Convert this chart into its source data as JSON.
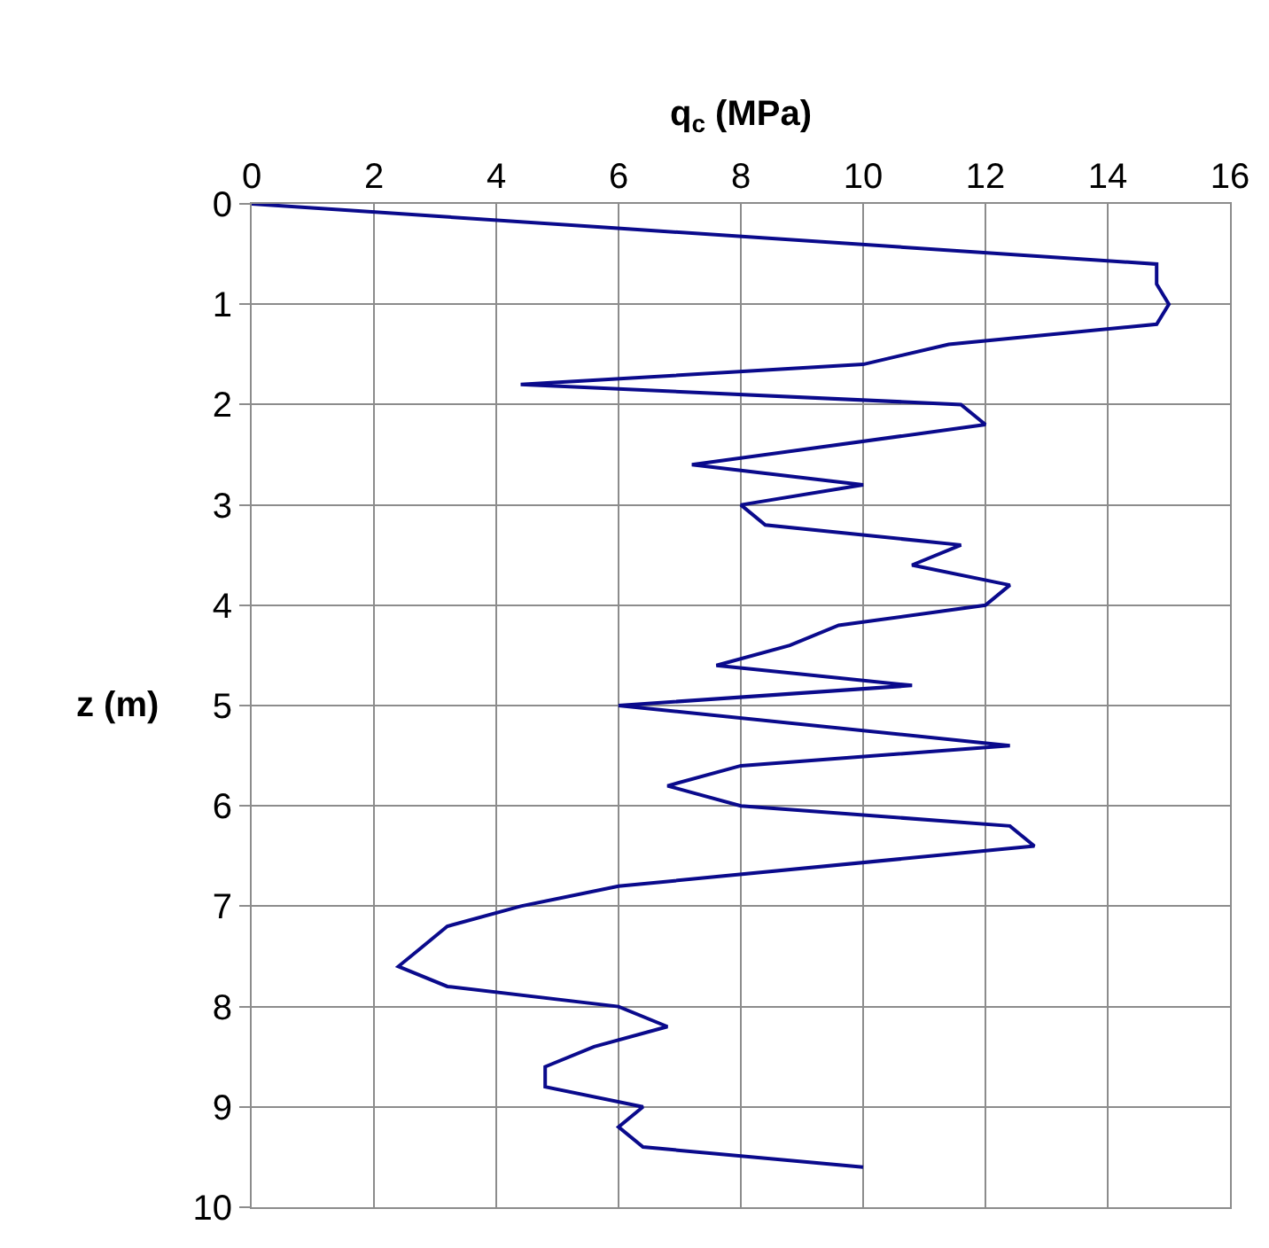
{
  "chart_data": {
    "type": "line",
    "xlabel": "q$_{c}$ (MPa)",
    "ylabel": "z (m)",
    "series": [
      {
        "color": "#0a0a8c",
        "x": [
          0,
          14.8,
          14.8,
          15.0,
          14.8,
          11.4,
          10.0,
          4.4,
          11.6,
          12.0,
          7.2,
          10.0,
          8.0,
          8.4,
          11.6,
          10.8,
          12.4,
          12.0,
          9.6,
          8.8,
          7.6,
          10.8,
          6.0,
          12.4,
          8.0,
          6.8,
          8.0,
          12.4,
          12.8,
          6.0,
          4.4,
          3.2,
          2.8,
          2.4,
          3.2,
          6.0,
          6.8,
          5.6,
          4.8,
          4.8,
          6.4,
          6.0,
          6.4,
          10.0
        ],
        "values": [
          0,
          0.6,
          0.8,
          1.0,
          1.2,
          1.4,
          1.6,
          1.8,
          2.0,
          2.2,
          2.6,
          2.8,
          3.0,
          3.2,
          3.4,
          3.6,
          3.8,
          4.0,
          4.2,
          4.4,
          4.6,
          4.8,
          5.0,
          5.4,
          5.6,
          5.8,
          6.0,
          6.2,
          6.4,
          6.8,
          7.0,
          7.2,
          7.4,
          7.6,
          7.8,
          8.0,
          8.2,
          8.4,
          8.6,
          8.8,
          9.0,
          9.2,
          9.4,
          9.6
        ]
      }
    ],
    "xlim": [
      0,
      16
    ],
    "xticks": [
      0,
      2,
      4,
      6,
      8,
      10,
      12,
      14,
      16
    ],
    "ylim": [
      10,
      0
    ],
    "yticks": [
      0,
      1,
      2,
      3,
      4,
      5,
      6,
      7,
      8,
      9,
      10
    ],
    "grid": true,
    "marker": "none",
    "line_style": "solid"
  }
}
